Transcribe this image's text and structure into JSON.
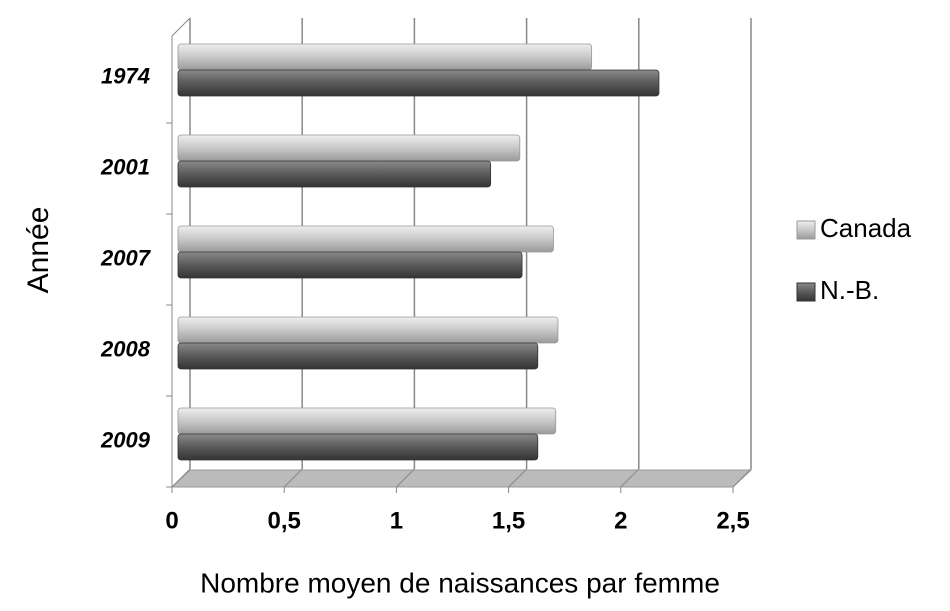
{
  "chart_data": {
    "type": "bar",
    "orientation": "horizontal",
    "xlabel": "Nombre moyen de naissances par femme",
    "ylabel": "Année",
    "categories": [
      "1974",
      "2001",
      "2007",
      "2008",
      "2009"
    ],
    "series": [
      {
        "name": "Canada",
        "color": "#c8c8c8",
        "values": [
          1.87,
          1.55,
          1.7,
          1.72,
          1.71
        ]
      },
      {
        "name": "N.-B.",
        "color": "#5a5a5a",
        "values": [
          2.17,
          1.42,
          1.56,
          1.63,
          1.63
        ]
      }
    ],
    "xlim": [
      0,
      2.5
    ],
    "xticks": [
      0,
      {
        "value": 0.5,
        "label": "0,5"
      },
      1,
      {
        "value": 1.5,
        "label": "1,5"
      },
      2,
      {
        "value": 2.5,
        "label": "2,5"
      }
    ],
    "grid": true,
    "legend": "right"
  }
}
